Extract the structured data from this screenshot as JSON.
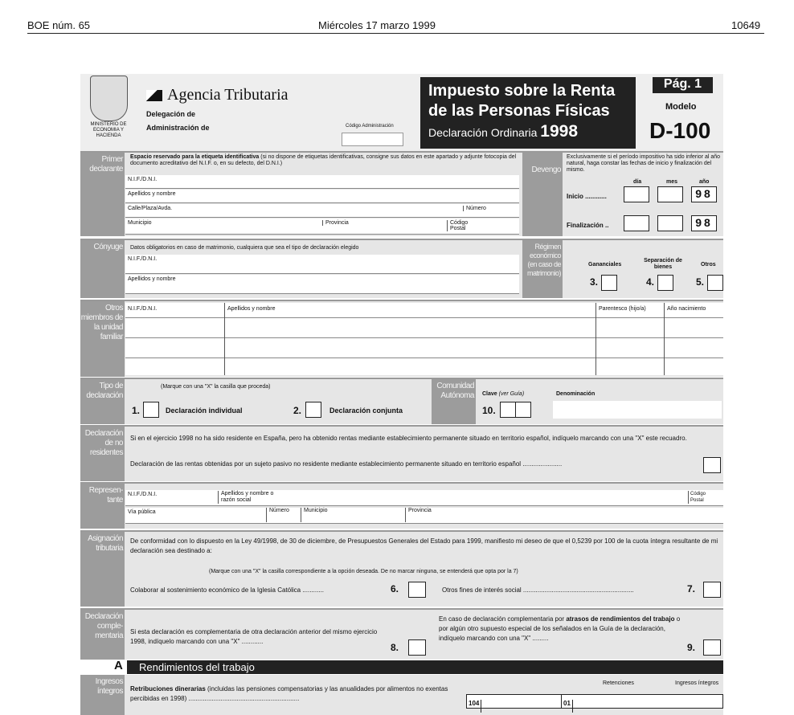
{
  "header": {
    "left": "BOE núm. 65",
    "center": "Miércoles 17 marzo 1999",
    "right": "10649"
  },
  "form": {
    "ministry": "MINISTERIO DE ECONOMIA Y HACIENDA",
    "agency": "Agencia Tributaria",
    "delegacion": "Delegación de",
    "administracion": "Administración de",
    "codigo_admin": "Código Administración",
    "title1": "Impuesto sobre la Renta",
    "title2": "de las Personas Físicas",
    "title3": "Declaración Ordinaria",
    "year": "1998",
    "page": "Pág. 1",
    "modelo_label": "Modelo",
    "modelo": "D-100",
    "primer": {
      "label": "Primer declarante",
      "intro_bold": "Espacio reservado para la etiqueta identificativa",
      "intro": "(si no dispone de etiquetas identificativas, consigne sus datos en este apartado y adjunte fotocopia del documento acreditativo del N.I.F. o, en su defecto, del D.N.I.)",
      "nif": "N.I.F./D.N.I.",
      "nombre": "Apellidos y nombre",
      "calle": "Calle/Plaza/Avda.",
      "numero": "Número",
      "municipio": "Municipio",
      "provincia": "Provincia",
      "cp": "Código Postal"
    },
    "devengo": {
      "label": "Devengo",
      "text": "Exclusivamente si el período impositivo ha sido inferior al año natural, haga constar las fechas de inicio y finalización del mismo.",
      "dia": "día",
      "mes": "mes",
      "ano": "año",
      "inicio": "Inicio ............",
      "final": "Finalización ..",
      "year": "98"
    },
    "conyuge": {
      "label": "Cónyuge",
      "intro": "Datos obligatorios en caso de matrimonio, cualquiera que sea el tipo de declaración elegido",
      "nif": "N.I.F./D.N.I.",
      "nombre": "Apellidos y nombre"
    },
    "regimen": {
      "label": "Régimen económico (en caso de matrimonio)",
      "opts": [
        {
          "n": "3.",
          "l": "Gananciales"
        },
        {
          "n": "4.",
          "l": "Separación de bienes"
        },
        {
          "n": "5.",
          "l": "Otros"
        }
      ]
    },
    "otros": {
      "label": "Otros miembros de la unidad familiar",
      "cols": [
        "N.I.F./D.N.I.",
        "Apellidos y nombre",
        "Parentesco (hijo/a)",
        "Año nacimiento"
      ]
    },
    "tipo": {
      "label": "Tipo de declaración",
      "hint": "(Marque con una \"X\" la casilla que proceda)",
      "o1n": "1.",
      "o1": "Declaración individual",
      "o2n": "2.",
      "o2": "Declaración conjunta"
    },
    "comunidad": {
      "label": "Comunidad Autónoma",
      "clave": "Clave",
      "guia": "(ver Guía)",
      "denominacion": "Denominación",
      "n": "10."
    },
    "noresid": {
      "label": "Declaración de no residentes",
      "text1": "Si en el ejercicio 1998 no ha sido residente en España, pero ha obtenido rentas mediante establecimiento permanente situado en territorio español, indíquelo marcando con una \"X\" este recuadro.",
      "text2": "Declaración de las rentas obtenidas por un sujeto pasivo no residente mediante establecimiento permanente situado en territorio español ......................"
    },
    "repr": {
      "label": "Represen-tante",
      "nif": "N.I.F./D.N.I.",
      "nombre": "Apellidos y nombre o razón social",
      "cp": "Código Postal",
      "via": "Vía pública",
      "numero": "Número",
      "municipio": "Municipio",
      "provincia": "Provincia"
    },
    "asig": {
      "label": "Asignación tributaria",
      "text": "De conformidad con lo dispuesto en la Ley 49/1998, de 30 de diciembre, de Presupuestos Generales del Estado para 1999, manifiesto mi deseo de que el 0,5239 por 100 de la cuota íntegra resultante de mi declaración sea destinado a:",
      "hint": "(Marque con una \"X\" la casilla correspondiente a la opción deseada. De no marcar ninguna, se entenderá que opta por la 7)",
      "o6": "Colaborar al sostenimiento económico de la Iglesia Católica ............",
      "n6": "6.",
      "o7": "Otros fines de interés social ..............................................................",
      "n7": "7."
    },
    "compl": {
      "label": "Declaración comple-mentaria",
      "text8": "Si esta declaración es complementaria de otra declaración anterior del mismo ejercicio 1998, indíquelo marcando con una \"X\" ............",
      "n8": "8.",
      "text9a": "En caso de declaración complementaria por ",
      "text9b": "atrasos de rendimientos del trabajo",
      "text9c": " o por algún otro supuesto especial de los señalados en la Guía de la declaración, indíquelo marcando con una \"X\" .........",
      "n9": "9."
    },
    "secA": {
      "letter": "A",
      "title": "Rendimientos del trabajo"
    },
    "ingresos": {
      "label": "Ingresos íntegros",
      "bold": "Retribuciones dinerarias",
      "text": " (incluidas las pensiones compensatorias y las anualidades por alimentos no exentas percibidas en 1998) ..............................................................",
      "ret": "Retenciones",
      "ing": "Ingresos íntegros",
      "c1": "104",
      "c2": "01"
    }
  }
}
